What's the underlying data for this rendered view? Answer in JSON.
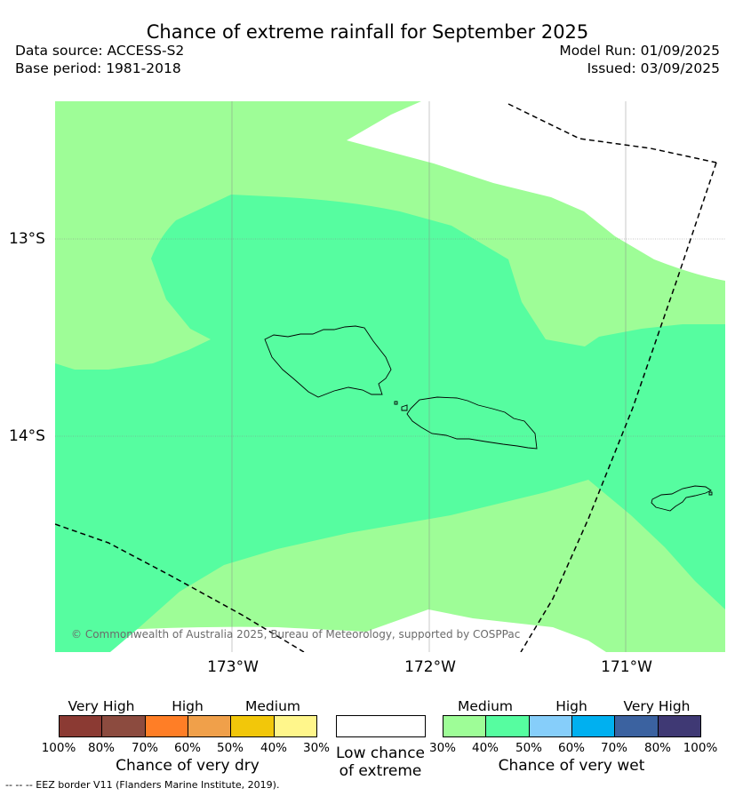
{
  "title": "Chance of extreme rainfall for September 2025",
  "data_source": "Data source: ACCESS-S2",
  "base_period": "Base period: 1981-2018",
  "model_run": "Model Run: 01/09/2025",
  "issued": "Issued: 03/09/2025",
  "map": {
    "latitude_labels": [
      "13°S",
      "14°S"
    ],
    "longitude_labels": [
      "173°W",
      "172°W",
      "171°W"
    ],
    "copyright": "© Commonwealth of Australia 2025, Bureau of Meteorology, supported by COSPPac",
    "colors": {
      "wet_medium_30_40": "#9efd97",
      "wet_medium_40_50": "#56fda0",
      "no_signal": "#ffffff",
      "coastline": "#000000",
      "eez_border": "#000000"
    }
  },
  "legend": {
    "dry": {
      "categories": [
        "Very High",
        "High",
        "Medium"
      ],
      "ticks": [
        "100%",
        "80%",
        "70%",
        "60%",
        "50%",
        "40%",
        "30%"
      ],
      "colors": [
        "#8b3a33",
        "#8c4b3f",
        "#ff7e26",
        "#f0a04a",
        "#f2c70a",
        "#fff68b"
      ],
      "title": "Chance of very dry"
    },
    "low": {
      "line1": "Low chance",
      "line2": "of extreme",
      "color": "#ffffff"
    },
    "wet": {
      "categories": [
        "Medium",
        "High",
        "Very High"
      ],
      "ticks": [
        "30%",
        "40%",
        "50%",
        "60%",
        "70%",
        "80%",
        "100%"
      ],
      "colors": [
        "#9efd97",
        "#56fda0",
        "#86cefa",
        "#00b0f0",
        "#3b62a0",
        "#3f3974"
      ],
      "title": "Chance of very wet"
    }
  },
  "footer": "--  --  -- EEZ border V11 (Flanders Marine Institute, 2019)."
}
